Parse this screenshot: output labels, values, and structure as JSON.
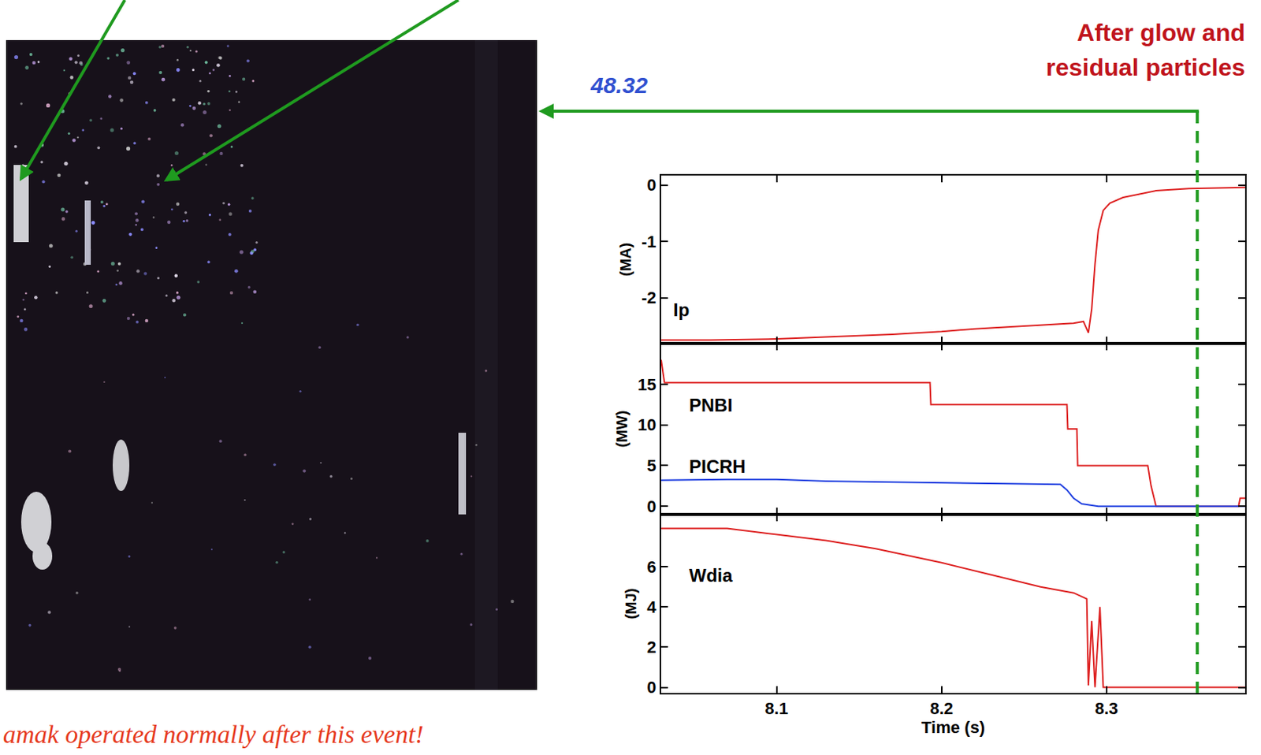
{
  "chart_data": [
    {
      "type": "line",
      "ylabel": "(MA)",
      "tick_labels": "y",
      "xlim": [
        8.03,
        8.384
      ],
      "xticks": [
        8.1,
        8.2,
        8.3
      ],
      "ylim": [
        -2.81,
        0.17
      ],
      "yticks": [
        -2,
        -1,
        0
      ],
      "series": [
        {
          "name": "Ip",
          "color": "#dd2020",
          "line_style": "solid",
          "x": [
            8.03,
            8.06,
            8.1,
            8.14,
            8.17,
            8.2,
            8.22,
            8.25,
            8.28,
            8.286,
            8.289,
            8.291,
            8.293,
            8.295,
            8.298,
            8.302,
            8.31,
            8.33,
            8.35,
            8.384
          ],
          "values": [
            -2.75,
            -2.75,
            -2.73,
            -2.69,
            -2.65,
            -2.6,
            -2.55,
            -2.5,
            -2.45,
            -2.42,
            -2.62,
            -2.2,
            -1.4,
            -0.8,
            -0.45,
            -0.32,
            -0.22,
            -0.1,
            -0.06,
            -0.04
          ]
        }
      ]
    },
    {
      "type": "line",
      "ylabel": "(MW)",
      "tick_labels": "y",
      "xlim": [
        8.03,
        8.384
      ],
      "xticks": [
        8.1,
        8.2,
        8.3
      ],
      "ylim": [
        -1,
        20
      ],
      "yticks": [
        0,
        5,
        10,
        15
      ],
      "series": [
        {
          "name": "PNBI",
          "color": "#dd2020",
          "line_style": "solid",
          "x": [
            8.03,
            8.032,
            8.193,
            8.1935,
            8.276,
            8.2765,
            8.282,
            8.2825,
            8.325,
            8.327,
            8.33,
            8.38,
            8.381,
            8.384
          ],
          "values": [
            18,
            15.2,
            15.2,
            12.5,
            12.5,
            9.5,
            9.5,
            5,
            5,
            2.5,
            0,
            0,
            1,
            1
          ]
        },
        {
          "name": "PICRH",
          "color": "#2040e0",
          "line_style": "solid",
          "x": [
            8.03,
            8.07,
            8.1,
            8.13,
            8.16,
            8.2,
            8.25,
            8.272,
            8.276,
            8.28,
            8.285,
            8.295,
            8.384
          ],
          "values": [
            3.2,
            3.3,
            3.3,
            3.1,
            3.0,
            2.9,
            2.8,
            2.7,
            2,
            1,
            0.3,
            0,
            0
          ]
        }
      ]
    },
    {
      "type": "line",
      "ylabel": "(MJ)",
      "xlabel": "Time (s)",
      "xlim": [
        8.03,
        8.384
      ],
      "xticks": [
        8.1,
        8.2,
        8.3
      ],
      "ylim": [
        -0.28,
        8.6
      ],
      "yticks": [
        0,
        2,
        4,
        6
      ],
      "series": [
        {
          "name": "Wdia",
          "color": "#dd2020",
          "line_style": "solid",
          "x": [
            8.03,
            8.07,
            8.1,
            8.13,
            8.16,
            8.2,
            8.23,
            8.26,
            8.28,
            8.288,
            8.289,
            8.291,
            8.293,
            8.296,
            8.298,
            8.384
          ],
          "values": [
            7.9,
            7.9,
            7.6,
            7.3,
            6.9,
            6.2,
            5.6,
            5.0,
            4.7,
            4.4,
            0.1,
            3.3,
            0,
            4.0,
            0,
            0
          ]
        }
      ]
    }
  ],
  "annotation": {
    "text": "After glow and residual particles",
    "x": 8.355
  },
  "image": {
    "label": "48.32"
  },
  "caption": "amak operated normally after this event!"
}
